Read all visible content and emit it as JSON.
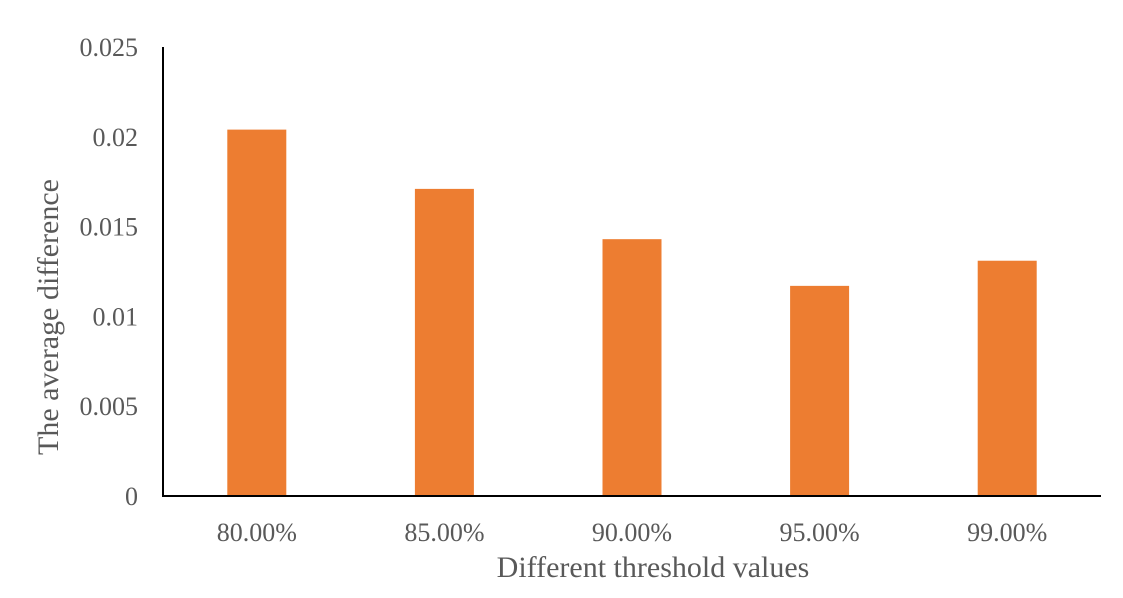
{
  "chart_data": {
    "type": "bar",
    "title": "",
    "xlabel": "Different threshold values",
    "ylabel": "The average difference",
    "categories": [
      "80.00%",
      "85.00%",
      "90.00%",
      "95.00%",
      "99.00%"
    ],
    "values": [
      0.0204,
      0.0171,
      0.0143,
      0.0117,
      0.0131
    ],
    "ylim": [
      0,
      0.025
    ],
    "yticks": [
      0,
      0.005,
      0.01,
      0.015,
      0.02,
      0.025
    ],
    "ytick_labels": [
      "0",
      "0.005",
      "0.01",
      "0.015",
      "0.02",
      "0.025"
    ],
    "grid": false,
    "legend": "none",
    "bar_color": "#ED7D31",
    "axis_color": "#000000",
    "text_color": "#595959"
  }
}
